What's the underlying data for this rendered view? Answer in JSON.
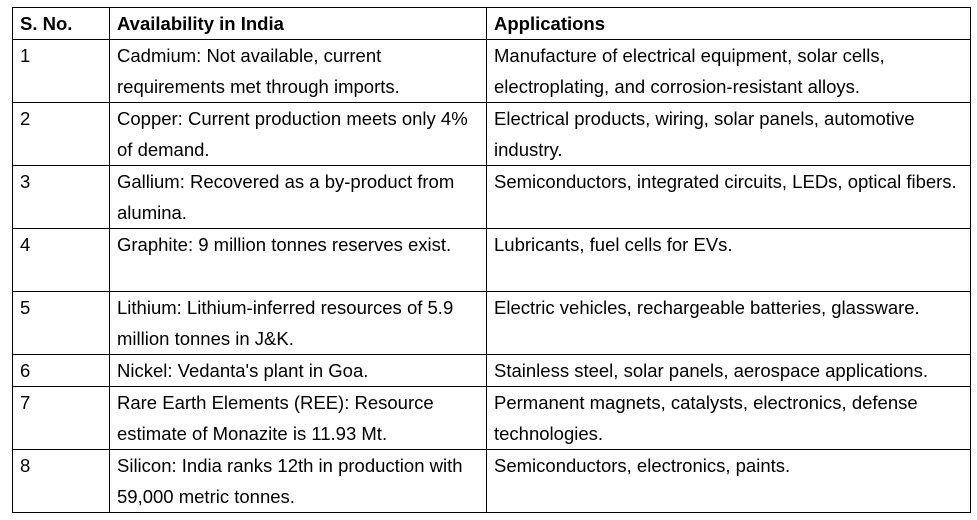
{
  "table": {
    "headers": {
      "sno": "S. No.",
      "availability": "Availability in India",
      "applications": "Applications"
    },
    "rows": [
      {
        "sno": "1",
        "availability": "Cadmium: Not available, current requirements met through imports.",
        "applications": "Manufacture of electrical equipment, solar cells, electroplating, and corrosion-resistant alloys."
      },
      {
        "sno": "2",
        "availability": "Copper: Current production meets only 4% of demand.",
        "applications": "Electrical products, wiring, solar panels, automotive industry."
      },
      {
        "sno": "3",
        "availability": "Gallium: Recovered as a by-product from alumina.",
        "applications": "Semiconductors, integrated circuits, LEDs, optical fibers."
      },
      {
        "sno": "4",
        "availability": "Graphite: 9 million tonnes reserves exist.",
        "applications": "Lubricants, fuel cells for EVs."
      },
      {
        "sno": "5",
        "availability": "Lithium: Lithium-inferred resources of 5.9 million tonnes in J&K.",
        "applications": "Electric vehicles, rechargeable batteries, glassware."
      },
      {
        "sno": "6",
        "availability": "Nickel: Vedanta's plant in Goa.",
        "applications": "Stainless steel, solar panels, aerospace applications."
      },
      {
        "sno": "7",
        "availability": "Rare Earth Elements (REE): Resource estimate of Monazite is 11.93 Mt.",
        "applications": "Permanent magnets, catalysts, electronics, defense technologies."
      },
      {
        "sno": "8",
        "availability": "Silicon: India ranks 12th in production with 59,000 metric tonnes.",
        "applications": "Semiconductors, electronics, paints."
      }
    ]
  }
}
